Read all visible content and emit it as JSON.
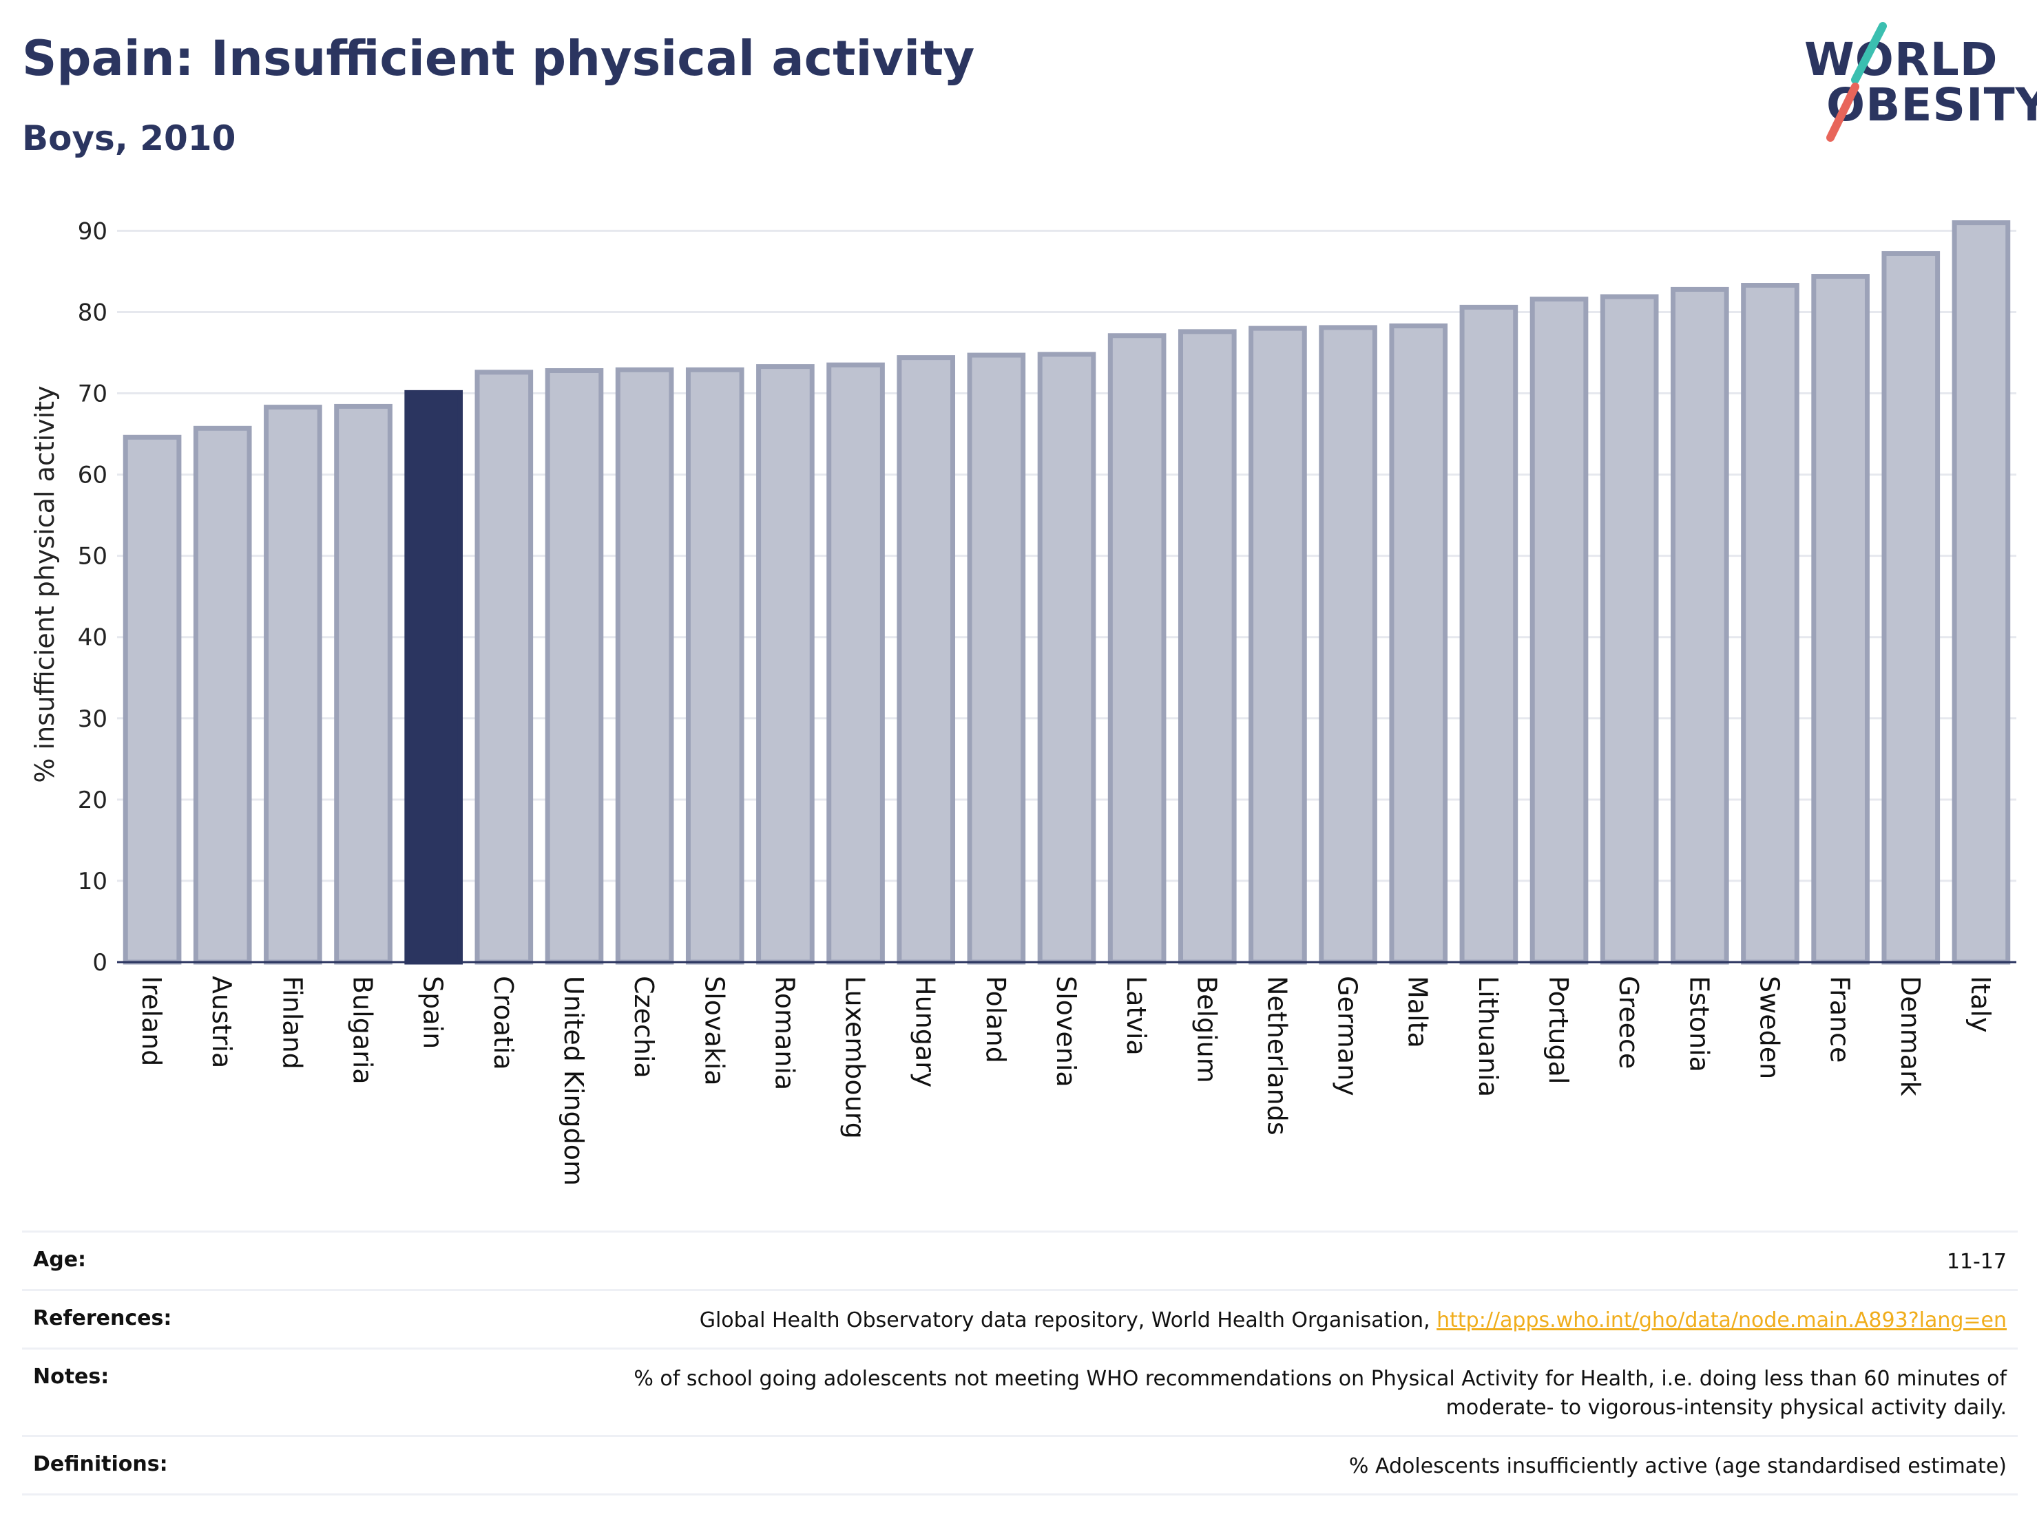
{
  "header": {
    "title": "Spain: Insufficient physical activity",
    "subtitle": "Boys, 2010"
  },
  "logo": {
    "line1": "WORLD",
    "line2": "OBESITY",
    "accent_teal": "#3bbfb0",
    "accent_red": "#e8655a"
  },
  "colors": {
    "highlight_bar": "#2b3560",
    "bar_fill": "#bec2d0",
    "bar_stroke": "#9ca2b8",
    "grid": "#e6e8ee",
    "text": "#2b3560"
  },
  "chart_data": {
    "type": "bar",
    "title": "Spain: Insufficient physical activity",
    "subtitle": "Boys, 2010",
    "xlabel": "",
    "ylabel": "% insufficient physical activity",
    "ylim": [
      0,
      93
    ],
    "yticks": [
      0,
      10,
      20,
      30,
      40,
      50,
      60,
      70,
      80,
      90
    ],
    "grid": true,
    "highlight": "Spain",
    "categories": [
      "Ireland",
      "Austria",
      "Finland",
      "Bulgaria",
      "Spain",
      "Croatia",
      "United Kingdom",
      "Czechia",
      "Slovakia",
      "Romania",
      "Luxembourg",
      "Hungary",
      "Poland",
      "Slovenia",
      "Latvia",
      "Belgium",
      "Netherlands",
      "Germany",
      "Malta",
      "Lithuania",
      "Portugal",
      "Greece",
      "Estonia",
      "Sweden",
      "France",
      "Denmark",
      "Italy"
    ],
    "values": [
      64.6,
      65.7,
      68.3,
      68.4,
      70.1,
      72.6,
      72.8,
      72.9,
      72.9,
      73.3,
      73.5,
      74.4,
      74.7,
      74.8,
      77.1,
      77.6,
      78.0,
      78.1,
      78.3,
      80.6,
      81.6,
      81.9,
      82.8,
      83.3,
      84.4,
      87.2,
      91.0
    ]
  },
  "meta": {
    "rows": [
      {
        "label": "Age:",
        "value": "11-17"
      },
      {
        "label": "References:",
        "value": "Global Health Observatory data repository, World Health Organisation, ",
        "link": "http://apps.who.int/gho/data/node.main.A893?lang=en"
      },
      {
        "label": "Notes:",
        "value": "% of school going adolescents not meeting WHO recommendations on Physical Activity for Health, i.e. doing less than 60 minutes of moderate- to vigorous-intensity physical activity daily."
      },
      {
        "label": "Definitions:",
        "value": "% Adolescents insufficiently active (age standardised estimate)"
      }
    ]
  }
}
